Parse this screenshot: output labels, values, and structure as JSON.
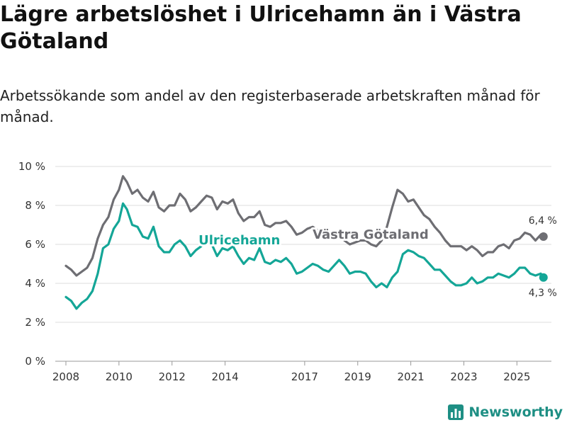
{
  "title": "Lägre arbetslöshet i Ulricehamn än i Västra Götaland",
  "subtitle": "Arbetssökande som andel av den registerbaserade arbetskraften månad för månad.",
  "brand": {
    "name": "Newsworthy",
    "color": "#1e8f84"
  },
  "chart_data": {
    "type": "line",
    "ylim": [
      0,
      10
    ],
    "yticks": [
      0,
      2,
      4,
      6,
      8,
      10
    ],
    "ytick_labels": [
      "0 %",
      "2 %",
      "4 %",
      "6 %",
      "8 %",
      "10 %"
    ],
    "xlim": [
      2007.6,
      2026.3
    ],
    "xticks": [
      2008,
      2010,
      2012,
      2014,
      2017,
      2019,
      2021,
      2023,
      2025
    ],
    "xtick_labels": [
      "2008",
      "2010",
      "2012",
      "2014",
      "2017",
      "2019",
      "2021",
      "2023",
      "2025"
    ],
    "grid": true,
    "series": [
      {
        "name": "Västra Götaland",
        "color": "#6e6e73",
        "end_label": "6,4 %",
        "label_at": [
          2017.3,
          6.3
        ],
        "points": [
          [
            2008.0,
            4.9
          ],
          [
            2008.2,
            4.7
          ],
          [
            2008.4,
            4.4
          ],
          [
            2008.6,
            4.6
          ],
          [
            2008.8,
            4.8
          ],
          [
            2009.0,
            5.3
          ],
          [
            2009.2,
            6.3
          ],
          [
            2009.4,
            7.0
          ],
          [
            2009.6,
            7.4
          ],
          [
            2009.8,
            8.3
          ],
          [
            2010.0,
            8.8
          ],
          [
            2010.15,
            9.5
          ],
          [
            2010.3,
            9.2
          ],
          [
            2010.5,
            8.6
          ],
          [
            2010.7,
            8.8
          ],
          [
            2010.9,
            8.4
          ],
          [
            2011.1,
            8.2
          ],
          [
            2011.3,
            8.7
          ],
          [
            2011.5,
            7.9
          ],
          [
            2011.7,
            7.7
          ],
          [
            2011.9,
            8.0
          ],
          [
            2012.1,
            8.0
          ],
          [
            2012.3,
            8.6
          ],
          [
            2012.5,
            8.3
          ],
          [
            2012.7,
            7.7
          ],
          [
            2012.9,
            7.9
          ],
          [
            2013.1,
            8.2
          ],
          [
            2013.3,
            8.5
          ],
          [
            2013.5,
            8.4
          ],
          [
            2013.7,
            7.8
          ],
          [
            2013.9,
            8.2
          ],
          [
            2014.1,
            8.1
          ],
          [
            2014.3,
            8.3
          ],
          [
            2014.5,
            7.6
          ],
          [
            2014.7,
            7.2
          ],
          [
            2014.9,
            7.4
          ],
          [
            2015.1,
            7.4
          ],
          [
            2015.3,
            7.7
          ],
          [
            2015.5,
            7.0
          ],
          [
            2015.7,
            6.9
          ],
          [
            2015.9,
            7.1
          ],
          [
            2016.1,
            7.1
          ],
          [
            2016.3,
            7.2
          ],
          [
            2016.5,
            6.9
          ],
          [
            2016.7,
            6.5
          ],
          [
            2016.9,
            6.6
          ],
          [
            2017.1,
            6.8
          ],
          [
            2017.3,
            6.9
          ],
          [
            2017.5,
            6.7
          ],
          [
            2017.7,
            6.3
          ],
          [
            2017.9,
            6.4
          ],
          [
            2018.1,
            6.5
          ],
          [
            2018.3,
            6.5
          ],
          [
            2018.5,
            6.2
          ],
          [
            2018.7,
            6.0
          ],
          [
            2018.9,
            6.1
          ],
          [
            2019.1,
            6.2
          ],
          [
            2019.3,
            6.2
          ],
          [
            2019.5,
            6.0
          ],
          [
            2019.7,
            5.9
          ],
          [
            2019.9,
            6.2
          ],
          [
            2020.1,
            6.9
          ],
          [
            2020.3,
            7.9
          ],
          [
            2020.5,
            8.8
          ],
          [
            2020.7,
            8.6
          ],
          [
            2020.9,
            8.2
          ],
          [
            2021.1,
            8.3
          ],
          [
            2021.3,
            7.9
          ],
          [
            2021.5,
            7.5
          ],
          [
            2021.7,
            7.3
          ],
          [
            2021.9,
            6.9
          ],
          [
            2022.1,
            6.6
          ],
          [
            2022.3,
            6.2
          ],
          [
            2022.5,
            5.9
          ],
          [
            2022.7,
            5.9
          ],
          [
            2022.9,
            5.9
          ],
          [
            2023.1,
            5.7
          ],
          [
            2023.3,
            5.9
          ],
          [
            2023.5,
            5.7
          ],
          [
            2023.7,
            5.4
          ],
          [
            2023.9,
            5.6
          ],
          [
            2024.1,
            5.6
          ],
          [
            2024.3,
            5.9
          ],
          [
            2024.5,
            6.0
          ],
          [
            2024.7,
            5.8
          ],
          [
            2024.9,
            6.2
          ],
          [
            2025.1,
            6.3
          ],
          [
            2025.3,
            6.6
          ],
          [
            2025.5,
            6.5
          ],
          [
            2025.7,
            6.2
          ],
          [
            2025.9,
            6.5
          ],
          [
            2026.0,
            6.4
          ]
        ]
      },
      {
        "name": "Ulricehamn",
        "color": "#14a697",
        "end_label": "4,3 %",
        "label_at": [
          2013.0,
          6.0
        ],
        "points": [
          [
            2008.0,
            3.3
          ],
          [
            2008.2,
            3.1
          ],
          [
            2008.4,
            2.7
          ],
          [
            2008.6,
            3.0
          ],
          [
            2008.8,
            3.2
          ],
          [
            2009.0,
            3.6
          ],
          [
            2009.2,
            4.5
          ],
          [
            2009.4,
            5.8
          ],
          [
            2009.6,
            6.0
          ],
          [
            2009.8,
            6.8
          ],
          [
            2010.0,
            7.2
          ],
          [
            2010.15,
            8.1
          ],
          [
            2010.3,
            7.8
          ],
          [
            2010.5,
            7.0
          ],
          [
            2010.7,
            6.9
          ],
          [
            2010.9,
            6.4
          ],
          [
            2011.1,
            6.3
          ],
          [
            2011.3,
            6.9
          ],
          [
            2011.5,
            5.9
          ],
          [
            2011.7,
            5.6
          ],
          [
            2011.9,
            5.6
          ],
          [
            2012.1,
            6.0
          ],
          [
            2012.3,
            6.2
          ],
          [
            2012.5,
            5.9
          ],
          [
            2012.7,
            5.4
          ],
          [
            2012.9,
            5.7
          ],
          [
            2013.1,
            5.9
          ],
          [
            2013.3,
            6.4
          ],
          [
            2013.5,
            6.0
          ],
          [
            2013.7,
            5.4
          ],
          [
            2013.9,
            5.8
          ],
          [
            2014.1,
            5.7
          ],
          [
            2014.3,
            5.9
          ],
          [
            2014.5,
            5.4
          ],
          [
            2014.7,
            5.0
          ],
          [
            2014.9,
            5.3
          ],
          [
            2015.1,
            5.2
          ],
          [
            2015.3,
            5.8
          ],
          [
            2015.5,
            5.1
          ],
          [
            2015.7,
            5.0
          ],
          [
            2015.9,
            5.2
          ],
          [
            2016.1,
            5.1
          ],
          [
            2016.3,
            5.3
          ],
          [
            2016.5,
            5.0
          ],
          [
            2016.7,
            4.5
          ],
          [
            2016.9,
            4.6
          ],
          [
            2017.1,
            4.8
          ],
          [
            2017.3,
            5.0
          ],
          [
            2017.5,
            4.9
          ],
          [
            2017.7,
            4.7
          ],
          [
            2017.9,
            4.6
          ],
          [
            2018.1,
            4.9
          ],
          [
            2018.3,
            5.2
          ],
          [
            2018.5,
            4.9
          ],
          [
            2018.7,
            4.5
          ],
          [
            2018.9,
            4.6
          ],
          [
            2019.1,
            4.6
          ],
          [
            2019.3,
            4.5
          ],
          [
            2019.5,
            4.1
          ],
          [
            2019.7,
            3.8
          ],
          [
            2019.9,
            4.0
          ],
          [
            2020.1,
            3.8
          ],
          [
            2020.3,
            4.3
          ],
          [
            2020.5,
            4.6
          ],
          [
            2020.7,
            5.5
          ],
          [
            2020.9,
            5.7
          ],
          [
            2021.1,
            5.6
          ],
          [
            2021.3,
            5.4
          ],
          [
            2021.5,
            5.3
          ],
          [
            2021.7,
            5.0
          ],
          [
            2021.9,
            4.7
          ],
          [
            2022.1,
            4.7
          ],
          [
            2022.3,
            4.4
          ],
          [
            2022.5,
            4.1
          ],
          [
            2022.7,
            3.9
          ],
          [
            2022.9,
            3.9
          ],
          [
            2023.1,
            4.0
          ],
          [
            2023.3,
            4.3
          ],
          [
            2023.5,
            4.0
          ],
          [
            2023.7,
            4.1
          ],
          [
            2023.9,
            4.3
          ],
          [
            2024.1,
            4.3
          ],
          [
            2024.3,
            4.5
          ],
          [
            2024.5,
            4.4
          ],
          [
            2024.7,
            4.3
          ],
          [
            2024.9,
            4.5
          ],
          [
            2025.1,
            4.8
          ],
          [
            2025.3,
            4.8
          ],
          [
            2025.5,
            4.5
          ],
          [
            2025.7,
            4.4
          ],
          [
            2025.9,
            4.5
          ],
          [
            2026.0,
            4.3
          ]
        ]
      }
    ]
  }
}
